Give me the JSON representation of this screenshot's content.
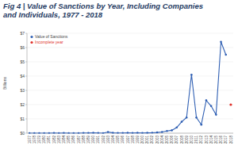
{
  "chart_data": {
    "type": "line",
    "title": "Fig 4 | Value of Sanctions by Year, Including Companies and Individuals, 1977 - 2018",
    "y_label": "Billions",
    "categories": [
      "1977",
      "1978",
      "1979",
      "1980",
      "1981",
      "1982",
      "1983",
      "1984",
      "1985",
      "1986",
      "1987",
      "1988",
      "1989",
      "1990",
      "1991",
      "1992",
      "1993",
      "1994",
      "1995",
      "1996",
      "1997",
      "1998",
      "1999",
      "2000",
      "2001",
      "2002",
      "2003",
      "2004",
      "2005",
      "2006",
      "2007",
      "2008",
      "2009",
      "2010",
      "2011",
      "2012",
      "2013",
      "2014",
      "2015",
      "2016",
      "2017",
      "2018"
    ],
    "series": [
      {
        "name": "Value of Sanctions",
        "color": "#2f5fb3",
        "marker": "circle",
        "line_style": "solid",
        "values": [
          0,
          0,
          0,
          0,
          0,
          0.01,
          0,
          0.01,
          0,
          0,
          0,
          0.01,
          0.01,
          0.02,
          0.01,
          0,
          0.08,
          0.02,
          0.01,
          0.01,
          0.02,
          0.01,
          0.02,
          0.01,
          0.02,
          0.03,
          0.05,
          0.08,
          0.15,
          0.2,
          0.4,
          0.8,
          1.1,
          4.1,
          1.1,
          0.6,
          2.3,
          1.9,
          1.3,
          6.4,
          5.5,
          null
        ]
      },
      {
        "name": "Incomplete year",
        "color": "#e0302a",
        "marker": "circle",
        "line_style": "none",
        "values": [
          null,
          null,
          null,
          null,
          null,
          null,
          null,
          null,
          null,
          null,
          null,
          null,
          null,
          null,
          null,
          null,
          null,
          null,
          null,
          null,
          null,
          null,
          null,
          null,
          null,
          null,
          null,
          null,
          null,
          null,
          null,
          null,
          null,
          null,
          null,
          null,
          null,
          null,
          null,
          null,
          null,
          2.0
        ]
      }
    ],
    "ylim": [
      0,
      7
    ],
    "yticks": [
      {
        "value": 0,
        "label": "$0"
      },
      {
        "value": 1,
        "label": "$1"
      },
      {
        "value": 2,
        "label": "$2"
      },
      {
        "value": 3,
        "label": "$3"
      },
      {
        "value": 4,
        "label": "$4"
      },
      {
        "value": 5,
        "label": "$5"
      },
      {
        "value": 6,
        "label": "$6"
      },
      {
        "value": 7,
        "label": "$7"
      }
    ],
    "grid": true,
    "legend": "upper left"
  }
}
